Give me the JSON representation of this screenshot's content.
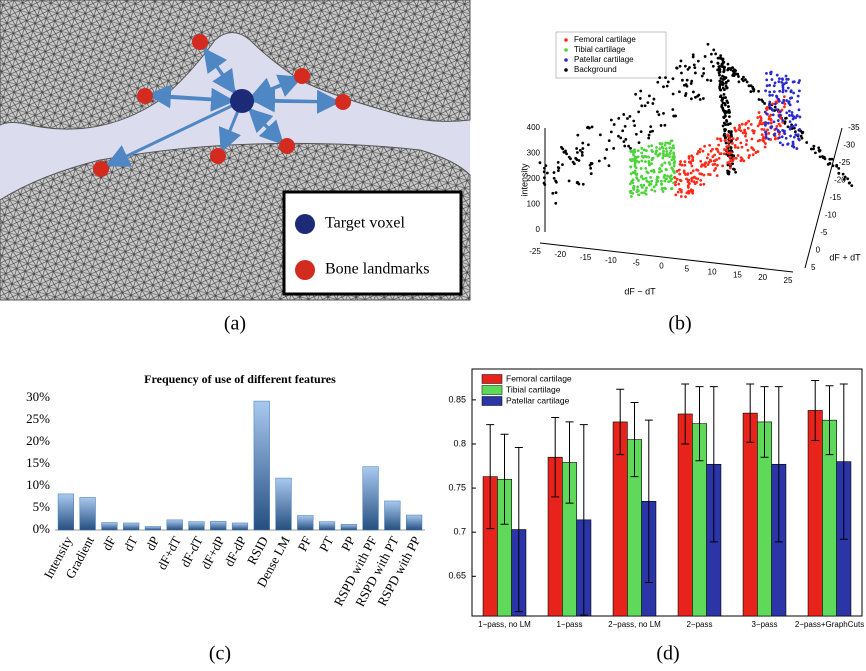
{
  "panel_a": {
    "label": "(a)",
    "legend": [
      "Target voxel",
      "Bone landmarks"
    ]
  },
  "panel_b": {
    "label": "(b)",
    "legend": [
      {
        "name": "Femoral cartilage",
        "color": "#ff2a1a"
      },
      {
        "name": "Tibial cartilage",
        "color": "#4cd43a"
      },
      {
        "name": "Patellar cartilage",
        "color": "#2a2ad0"
      },
      {
        "name": "Background",
        "color": "#000000"
      }
    ],
    "z_label": "intensity",
    "x_label": "dF − dT",
    "y_label": "dF + dT",
    "z_ticks": [
      "0",
      "100",
      "200",
      "300",
      "400"
    ],
    "x_ticks": [
      "-25",
      "-20",
      "-15",
      "-10",
      "-5",
      "0",
      "5",
      "10",
      "15",
      "20",
      "25"
    ],
    "y_ticks": [
      "-35",
      "-30",
      "-25",
      "-20",
      "-15",
      "-10",
      "-5",
      "0",
      "5"
    ]
  },
  "chart_data": [
    {
      "type": "bar",
      "label": "(c)",
      "title": "Frequency of use of different features",
      "categories": [
        "Intensity",
        "Gradient",
        "dF",
        "dT",
        "dP",
        "dF+dT",
        "dF-dT",
        "dF+dP",
        "dF-dP",
        "RSID",
        "Dense LM",
        "PF",
        "PT",
        "PP",
        "RSPD with PF",
        "RSPD with PT",
        "RSPD with PP"
      ],
      "values": [
        8.2,
        7.4,
        1.7,
        1.6,
        0.8,
        2.3,
        1.9,
        2.0,
        1.6,
        29.3,
        11.8,
        3.3,
        1.9,
        1.3,
        14.4,
        6.6,
        3.4
      ],
      "color": "#3f77b3",
      "ylim": [
        0,
        30
      ],
      "yticks": [
        {
          "value": 0,
          "label": "0%"
        },
        {
          "value": 5,
          "label": "5%"
        },
        {
          "value": 10,
          "label": "10%"
        },
        {
          "value": 15,
          "label": "15%"
        },
        {
          "value": 20,
          "label": "20%"
        },
        {
          "value": 25,
          "label": "25%"
        },
        {
          "value": 30,
          "label": "30%"
        }
      ]
    },
    {
      "type": "bar",
      "label": "(d)",
      "legend": "upper left",
      "categories": [
        "1−pass, no LM",
        "1−pass",
        "2−pass, no LM",
        "2−pass",
        "3−pass",
        "2−pass+GraphCuts"
      ],
      "series": [
        {
          "name": "Femoral cartilage",
          "color": "#e8231c",
          "values": [
            0.763,
            0.785,
            0.825,
            0.834,
            0.835,
            0.838
          ],
          "errors": [
            0.059,
            0.045,
            0.037,
            0.034,
            0.033,
            0.034
          ]
        },
        {
          "name": "Tibial cartilage",
          "color": "#5fd95a",
          "values": [
            0.76,
            0.779,
            0.805,
            0.823,
            0.825,
            0.827
          ],
          "errors": [
            0.051,
            0.046,
            0.042,
            0.042,
            0.04,
            0.039
          ]
        },
        {
          "name": "Patellar cartilage",
          "color": "#2b35a8",
          "values": [
            0.703,
            0.714,
            0.735,
            0.777,
            0.777,
            0.78
          ],
          "errors": [
            0.093,
            0.108,
            0.092,
            0.088,
            0.088,
            0.088
          ]
        }
      ],
      "ylim": [
        0.605,
        0.885
      ],
      "yticks": [
        0.65,
        0.7,
        0.75,
        0.8,
        0.85
      ]
    }
  ]
}
